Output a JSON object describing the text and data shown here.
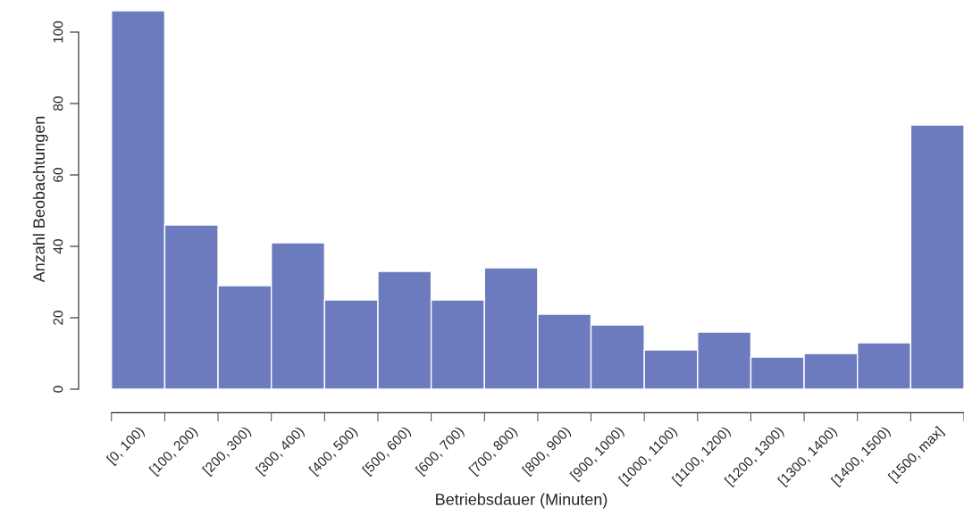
{
  "chart_data": {
    "type": "bar",
    "xlabel": "Betriebsdauer (Minuten)",
    "ylabel": "Anzahl Beobachtungen",
    "categories": [
      "[0, 100)",
      "[100, 200)",
      "[200, 300)",
      "[300, 400)",
      "[400, 500)",
      "[500, 600)",
      "[600, 700)",
      "[700, 800)",
      "[800, 900)",
      "[900, 1000)",
      "[1000, 1100)",
      "[1100, 1200)",
      "[1200, 1300)",
      "[1300, 1400)",
      "[1400, 1500)",
      "[1500, max]"
    ],
    "values": [
      106,
      46,
      29,
      41,
      25,
      33,
      25,
      34,
      21,
      18,
      11,
      16,
      9,
      10,
      13,
      74
    ],
    "color": "#6b7bbd",
    "ylim": [
      0,
      106.5
    ],
    "yticks": [
      0,
      20,
      40,
      60,
      80,
      100
    ],
    "grid": false,
    "legend": false
  }
}
